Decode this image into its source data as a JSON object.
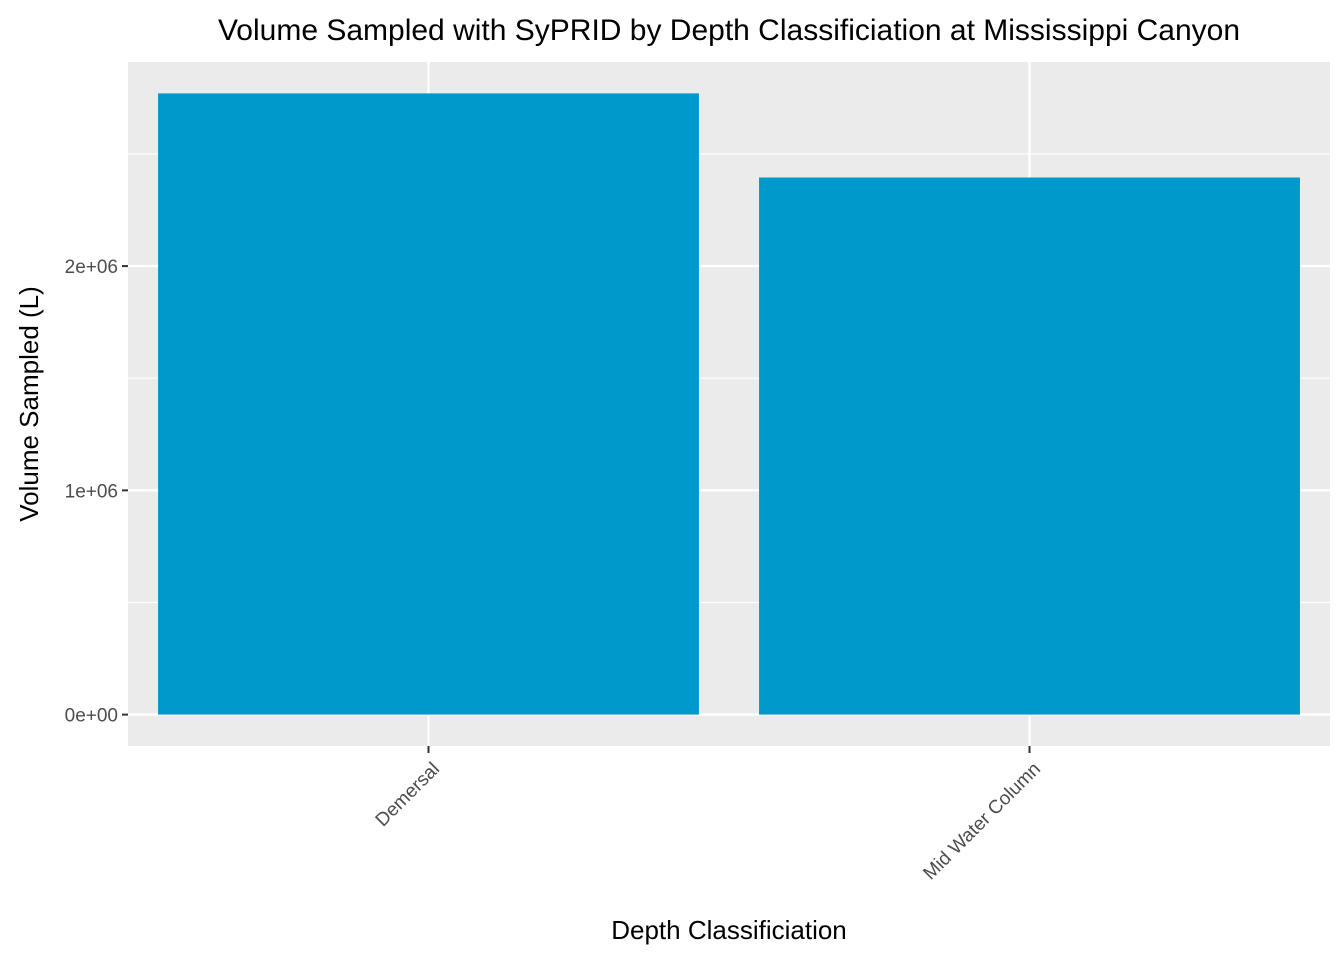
{
  "chart_data": {
    "type": "bar",
    "title": "Volume Sampled with SyPRID by Depth Classificiation at Mississippi Canyon",
    "xlabel": "Depth Classificiation",
    "ylabel": "Volume Sampled (L)",
    "categories": [
      "Demersal",
      "Mid Water Column"
    ],
    "values": [
      2770000,
      2395000
    ],
    "ylim": [
      -140000,
      2910000
    ],
    "yticks": [
      0,
      1000000,
      2000000
    ],
    "ytick_labels": [
      "0e+00",
      "1e+06",
      "2e+06"
    ],
    "grid": true,
    "legend": "none",
    "colors": {
      "bar": "#0099CC",
      "panel": "#EBEBEB",
      "grid_major": "#FFFFFF",
      "tick_text": "#4D4D4D"
    }
  }
}
